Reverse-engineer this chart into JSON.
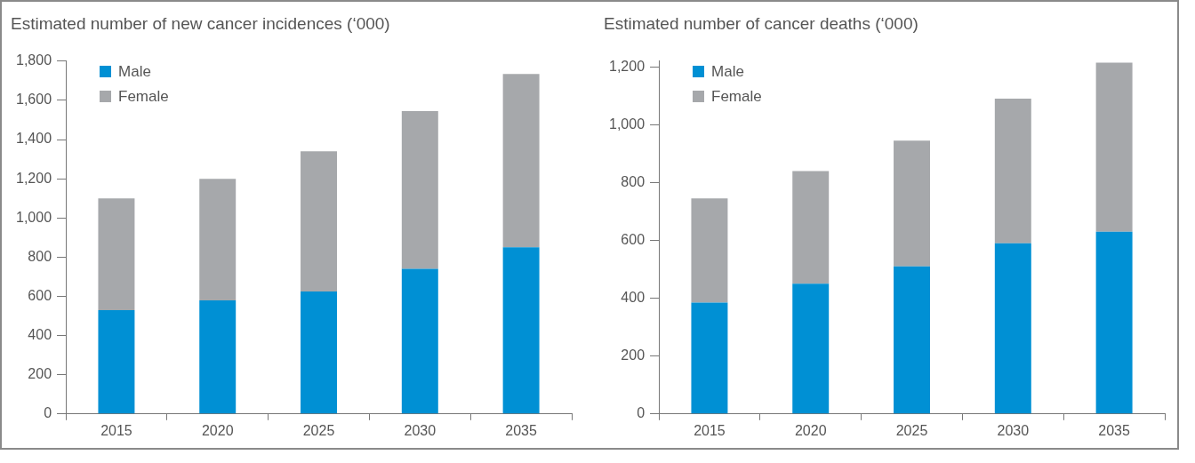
{
  "chart_data": [
    {
      "type": "bar",
      "stacked": true,
      "title": "Estimated number of new cancer incidences (‘000)",
      "categories": [
        "2015",
        "2020",
        "2025",
        "2030",
        "2035"
      ],
      "series": [
        {
          "name": "Male",
          "color": "#0090d4",
          "values": [
            530,
            580,
            625,
            740,
            850
          ]
        },
        {
          "name": "Female",
          "color": "#a6a8ab",
          "values": [
            570,
            620,
            715,
            805,
            885
          ]
        }
      ],
      "ylim": [
        0,
        1800
      ],
      "yticks": [
        0,
        200,
        400,
        600,
        800,
        {
          "value": 1000,
          "label": "1,000"
        },
        {
          "value": 1200,
          "label": "1,200"
        },
        {
          "value": 1400,
          "label": "1,400"
        },
        {
          "value": 1600,
          "label": "1,600"
        },
        {
          "value": 1800,
          "label": "1,800"
        }
      ],
      "grid": false,
      "legend": "top left"
    },
    {
      "type": "bar",
      "stacked": true,
      "title": "Estimated number of cancer deaths (‘000)",
      "categories": [
        "2015",
        "2020",
        "2025",
        "2030",
        "2035"
      ],
      "series": [
        {
          "name": "Male",
          "color": "#0090d4",
          "values": [
            385,
            450,
            510,
            590,
            630
          ]
        },
        {
          "name": "Female",
          "color": "#a6a8ab",
          "values": [
            360,
            390,
            435,
            500,
            585
          ]
        }
      ],
      "ylim": [
        0,
        1220
      ],
      "yticks": [
        0,
        200,
        400,
        600,
        800,
        {
          "value": 1000,
          "label": "1,000"
        },
        {
          "value": 1200,
          "label": "1,200"
        }
      ],
      "grid": false,
      "legend": "top left"
    }
  ]
}
